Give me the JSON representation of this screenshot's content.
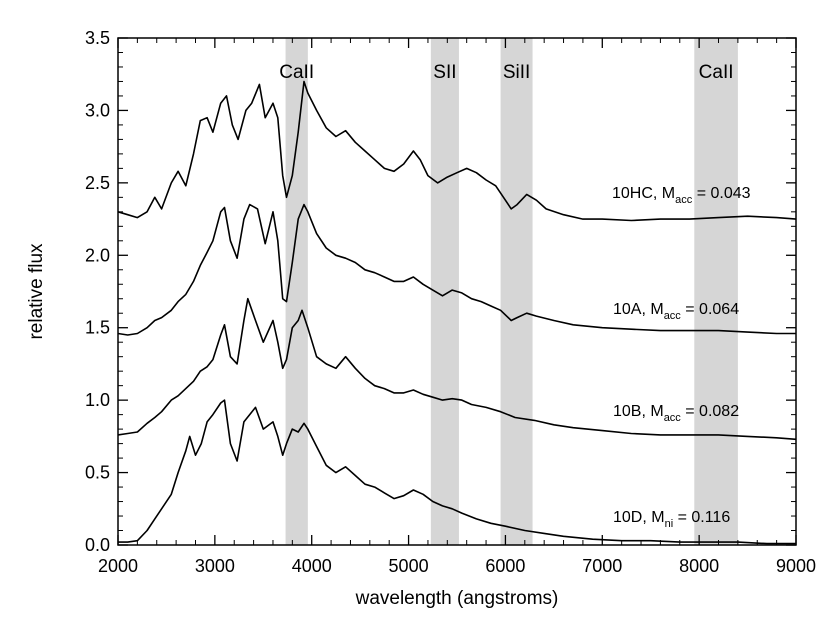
{
  "chart_data": {
    "type": "line",
    "title": "",
    "xlabel": "wavelength (angstroms)",
    "ylabel": "relative flux",
    "xlim": [
      2000,
      9000
    ],
    "ylim": [
      0.0,
      3.5
    ],
    "xticks": [
      2000,
      3000,
      4000,
      5000,
      6000,
      7000,
      8000,
      9000
    ],
    "yticks": [
      "0.0",
      "0.5",
      "1.0",
      "1.5",
      "2.0",
      "2.5",
      "3.0",
      "3.5"
    ],
    "grid": false,
    "line_color": "#000000",
    "band_color": "#d6d6d6",
    "bands": [
      {
        "label": "CaII",
        "range": [
          3730,
          3960
        ]
      },
      {
        "label": "SII",
        "range": [
          5230,
          5520
        ]
      },
      {
        "label": "SiII",
        "range": [
          5950,
          6280
        ]
      },
      {
        "label": "CaII",
        "range": [
          7950,
          8400
        ]
      }
    ],
    "series": [
      {
        "label_main": "10HC, M",
        "label_sub": "acc",
        "label_tail": " = 0.043",
        "points": [
          [
            2000,
            2.3
          ],
          [
            2100,
            2.28
          ],
          [
            2200,
            2.26
          ],
          [
            2300,
            2.3
          ],
          [
            2380,
            2.4
          ],
          [
            2450,
            2.32
          ],
          [
            2550,
            2.5
          ],
          [
            2620,
            2.58
          ],
          [
            2700,
            2.48
          ],
          [
            2780,
            2.7
          ],
          [
            2850,
            2.93
          ],
          [
            2920,
            2.95
          ],
          [
            2980,
            2.85
          ],
          [
            3060,
            3.05
          ],
          [
            3120,
            3.1
          ],
          [
            3180,
            2.9
          ],
          [
            3240,
            2.8
          ],
          [
            3320,
            3.0
          ],
          [
            3380,
            3.05
          ],
          [
            3460,
            3.18
          ],
          [
            3520,
            2.95
          ],
          [
            3600,
            3.05
          ],
          [
            3650,
            2.95
          ],
          [
            3700,
            2.55
          ],
          [
            3740,
            2.4
          ],
          [
            3800,
            2.55
          ],
          [
            3860,
            2.85
          ],
          [
            3920,
            3.2
          ],
          [
            3960,
            3.12
          ],
          [
            4050,
            3.0
          ],
          [
            4150,
            2.88
          ],
          [
            4250,
            2.82
          ],
          [
            4350,
            2.86
          ],
          [
            4450,
            2.78
          ],
          [
            4550,
            2.72
          ],
          [
            4650,
            2.66
          ],
          [
            4750,
            2.6
          ],
          [
            4850,
            2.58
          ],
          [
            4950,
            2.63
          ],
          [
            5050,
            2.72
          ],
          [
            5120,
            2.66
          ],
          [
            5200,
            2.55
          ],
          [
            5300,
            2.5
          ],
          [
            5400,
            2.54
          ],
          [
            5500,
            2.57
          ],
          [
            5600,
            2.6
          ],
          [
            5700,
            2.57
          ],
          [
            5800,
            2.52
          ],
          [
            5900,
            2.48
          ],
          [
            6000,
            2.38
          ],
          [
            6060,
            2.32
          ],
          [
            6120,
            2.35
          ],
          [
            6220,
            2.42
          ],
          [
            6320,
            2.38
          ],
          [
            6420,
            2.32
          ],
          [
            6600,
            2.28
          ],
          [
            6800,
            2.25
          ],
          [
            7000,
            2.25
          ],
          [
            7300,
            2.24
          ],
          [
            7600,
            2.25
          ],
          [
            7900,
            2.25
          ],
          [
            8200,
            2.26
          ],
          [
            8500,
            2.27
          ],
          [
            8800,
            2.26
          ],
          [
            9000,
            2.25
          ]
        ]
      },
      {
        "label_main": "10A, M",
        "label_sub": "acc",
        "label_tail": " = 0.064",
        "points": [
          [
            2000,
            1.46
          ],
          [
            2100,
            1.45
          ],
          [
            2200,
            1.46
          ],
          [
            2300,
            1.5
          ],
          [
            2380,
            1.55
          ],
          [
            2450,
            1.57
          ],
          [
            2550,
            1.62
          ],
          [
            2620,
            1.68
          ],
          [
            2700,
            1.73
          ],
          [
            2780,
            1.82
          ],
          [
            2850,
            1.93
          ],
          [
            2920,
            2.02
          ],
          [
            2980,
            2.1
          ],
          [
            3060,
            2.3
          ],
          [
            3100,
            2.33
          ],
          [
            3160,
            2.1
          ],
          [
            3230,
            1.98
          ],
          [
            3300,
            2.25
          ],
          [
            3360,
            2.35
          ],
          [
            3440,
            2.32
          ],
          [
            3520,
            2.08
          ],
          [
            3600,
            2.3
          ],
          [
            3650,
            2.1
          ],
          [
            3700,
            1.7
          ],
          [
            3740,
            1.68
          ],
          [
            3800,
            1.95
          ],
          [
            3860,
            2.25
          ],
          [
            3920,
            2.35
          ],
          [
            3960,
            2.3
          ],
          [
            4050,
            2.15
          ],
          [
            4150,
            2.05
          ],
          [
            4250,
            2.0
          ],
          [
            4350,
            1.98
          ],
          [
            4450,
            1.95
          ],
          [
            4550,
            1.9
          ],
          [
            4650,
            1.88
          ],
          [
            4750,
            1.85
          ],
          [
            4850,
            1.82
          ],
          [
            4950,
            1.82
          ],
          [
            5050,
            1.85
          ],
          [
            5150,
            1.8
          ],
          [
            5250,
            1.76
          ],
          [
            5350,
            1.72
          ],
          [
            5450,
            1.76
          ],
          [
            5550,
            1.74
          ],
          [
            5650,
            1.7
          ],
          [
            5750,
            1.68
          ],
          [
            5850,
            1.65
          ],
          [
            5950,
            1.62
          ],
          [
            6060,
            1.55
          ],
          [
            6120,
            1.57
          ],
          [
            6220,
            1.6
          ],
          [
            6320,
            1.58
          ],
          [
            6500,
            1.55
          ],
          [
            6700,
            1.52
          ],
          [
            7000,
            1.5
          ],
          [
            7300,
            1.49
          ],
          [
            7600,
            1.48
          ],
          [
            7900,
            1.48
          ],
          [
            8200,
            1.48
          ],
          [
            8500,
            1.47
          ],
          [
            8800,
            1.46
          ],
          [
            9000,
            1.46
          ]
        ]
      },
      {
        "label_main": "10B, M",
        "label_sub": "acc",
        "label_tail": " = 0.082",
        "points": [
          [
            2000,
            0.76
          ],
          [
            2100,
            0.77
          ],
          [
            2200,
            0.78
          ],
          [
            2300,
            0.84
          ],
          [
            2380,
            0.88
          ],
          [
            2450,
            0.92
          ],
          [
            2550,
            1.0
          ],
          [
            2620,
            1.03
          ],
          [
            2700,
            1.08
          ],
          [
            2780,
            1.13
          ],
          [
            2850,
            1.2
          ],
          [
            2920,
            1.23
          ],
          [
            2980,
            1.28
          ],
          [
            3060,
            1.45
          ],
          [
            3100,
            1.52
          ],
          [
            3160,
            1.3
          ],
          [
            3230,
            1.25
          ],
          [
            3300,
            1.55
          ],
          [
            3340,
            1.7
          ],
          [
            3420,
            1.55
          ],
          [
            3500,
            1.4
          ],
          [
            3600,
            1.55
          ],
          [
            3650,
            1.4
          ],
          [
            3700,
            1.22
          ],
          [
            3740,
            1.28
          ],
          [
            3800,
            1.5
          ],
          [
            3860,
            1.55
          ],
          [
            3900,
            1.62
          ],
          [
            3960,
            1.5
          ],
          [
            4050,
            1.3
          ],
          [
            4150,
            1.25
          ],
          [
            4250,
            1.22
          ],
          [
            4350,
            1.3
          ],
          [
            4450,
            1.22
          ],
          [
            4550,
            1.15
          ],
          [
            4650,
            1.1
          ],
          [
            4750,
            1.08
          ],
          [
            4850,
            1.05
          ],
          [
            4950,
            1.05
          ],
          [
            5050,
            1.07
          ],
          [
            5150,
            1.04
          ],
          [
            5250,
            1.02
          ],
          [
            5350,
            1.0
          ],
          [
            5450,
            1.01
          ],
          [
            5550,
            1.0
          ],
          [
            5650,
            0.97
          ],
          [
            5800,
            0.95
          ],
          [
            5950,
            0.92
          ],
          [
            6100,
            0.88
          ],
          [
            6300,
            0.86
          ],
          [
            6500,
            0.83
          ],
          [
            6700,
            0.81
          ],
          [
            7000,
            0.79
          ],
          [
            7300,
            0.77
          ],
          [
            7600,
            0.76
          ],
          [
            7900,
            0.76
          ],
          [
            8200,
            0.76
          ],
          [
            8500,
            0.75
          ],
          [
            8800,
            0.74
          ],
          [
            9000,
            0.73
          ]
        ]
      },
      {
        "label_main": "10D, M",
        "label_sub": "ni",
        "label_tail": " = 0.116",
        "points": [
          [
            2000,
            0.02
          ],
          [
            2100,
            0.02
          ],
          [
            2200,
            0.03
          ],
          [
            2300,
            0.1
          ],
          [
            2380,
            0.18
          ],
          [
            2450,
            0.25
          ],
          [
            2550,
            0.35
          ],
          [
            2620,
            0.5
          ],
          [
            2700,
            0.65
          ],
          [
            2740,
            0.75
          ],
          [
            2800,
            0.62
          ],
          [
            2860,
            0.7
          ],
          [
            2920,
            0.85
          ],
          [
            2980,
            0.9
          ],
          [
            3060,
            0.98
          ],
          [
            3100,
            1.0
          ],
          [
            3160,
            0.7
          ],
          [
            3230,
            0.58
          ],
          [
            3300,
            0.85
          ],
          [
            3360,
            0.9
          ],
          [
            3420,
            0.95
          ],
          [
            3500,
            0.8
          ],
          [
            3600,
            0.85
          ],
          [
            3650,
            0.75
          ],
          [
            3700,
            0.62
          ],
          [
            3740,
            0.7
          ],
          [
            3800,
            0.8
          ],
          [
            3860,
            0.78
          ],
          [
            3920,
            0.84
          ],
          [
            3960,
            0.8
          ],
          [
            4050,
            0.68
          ],
          [
            4150,
            0.55
          ],
          [
            4250,
            0.5
          ],
          [
            4350,
            0.54
          ],
          [
            4450,
            0.48
          ],
          [
            4550,
            0.42
          ],
          [
            4650,
            0.4
          ],
          [
            4750,
            0.36
          ],
          [
            4850,
            0.32
          ],
          [
            4950,
            0.34
          ],
          [
            5050,
            0.38
          ],
          [
            5150,
            0.35
          ],
          [
            5250,
            0.3
          ],
          [
            5350,
            0.27
          ],
          [
            5450,
            0.25
          ],
          [
            5550,
            0.22
          ],
          [
            5700,
            0.18
          ],
          [
            5850,
            0.15
          ],
          [
            6000,
            0.13
          ],
          [
            6200,
            0.1
          ],
          [
            6400,
            0.08
          ],
          [
            6600,
            0.06
          ],
          [
            6900,
            0.04
          ],
          [
            7200,
            0.03
          ],
          [
            7500,
            0.03
          ],
          [
            7800,
            0.02
          ],
          [
            8100,
            0.02
          ],
          [
            8400,
            0.02
          ],
          [
            8700,
            0.01
          ],
          [
            9000,
            0.01
          ]
        ]
      }
    ]
  }
}
